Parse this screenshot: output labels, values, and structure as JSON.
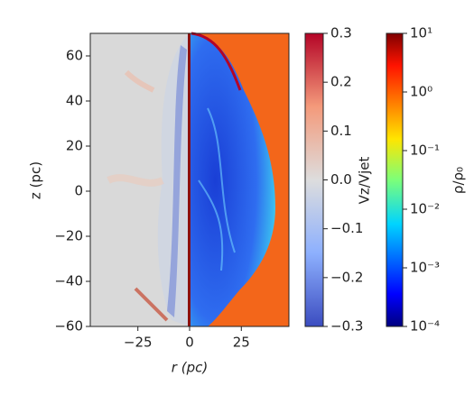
{
  "chart_data": {
    "type": "image",
    "xlabel": "r (pc)",
    "ylabel": "z (pc)",
    "xlim": [
      -48,
      48
    ],
    "xticks": [
      {
        "value": -25,
        "label": "−25"
      },
      0,
      25
    ],
    "ylim": [
      -60,
      70
    ],
    "yticks": [
      {
        "value": -60,
        "label": "−60"
      },
      {
        "value": -40,
        "label": "−40"
      },
      {
        "value": -20,
        "label": "−20"
      },
      0,
      20,
      40,
      60
    ],
    "colorbars": [
      {
        "label": "Vz/Vjet",
        "lim": [
          -0.3,
          0.3
        ],
        "scale": "linear",
        "ticks": [
          {
            "value": -0.3,
            "label": "−0.3"
          },
          {
            "value": -0.2,
            "label": "−0.2"
          },
          {
            "value": -0.1,
            "label": "−0.1"
          },
          {
            "value": 0,
            "label": "0.0"
          },
          0.1,
          0.2,
          0.3
        ]
      },
      {
        "label": "ρ/ρ₀",
        "lim": [
          0.0001,
          10
        ],
        "scale": "log",
        "ticks": [
          {
            "value": 0.0001,
            "label": "10⁻⁴"
          },
          {
            "value": 0.001,
            "label": "10⁻³"
          },
          {
            "value": 0.01,
            "label": "10⁻²"
          },
          {
            "value": 0.1,
            "label": "10⁻¹"
          },
          {
            "value": 1,
            "label": "10⁰"
          },
          {
            "value": 10,
            "label": "10¹"
          }
        ]
      }
    ]
  }
}
